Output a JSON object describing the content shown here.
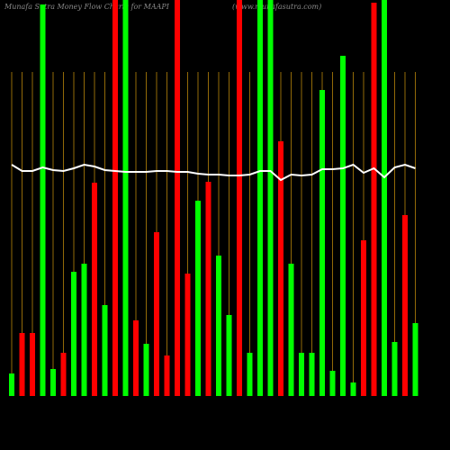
{
  "chart_data": {
    "type": "bar",
    "title": "Munafa Sutra Money Flow Charts for MAAPI",
    "subtitle": "(www.munafasutra.com)",
    "categories": [
      null,
      null,
      null,
      null,
      null,
      null,
      null,
      null,
      null,
      null,
      null,
      null,
      null,
      null,
      null,
      null,
      null,
      null,
      null,
      null,
      null,
      null,
      null,
      null,
      null,
      null,
      null,
      null,
      null,
      null,
      null,
      null,
      null,
      null,
      null,
      null,
      null,
      null,
      null,
      null
    ],
    "values": [
      25,
      70,
      70,
      435,
      30,
      48,
      138,
      147,
      237,
      101,
      440,
      440,
      84,
      58,
      182,
      45,
      440,
      136,
      217,
      238,
      156,
      90,
      440,
      48,
      440,
      440,
      283,
      147,
      48,
      48,
      340,
      28,
      378,
      15,
      173,
      437,
      440,
      60,
      201,
      81
    ],
    "colors": [
      "#00ff00",
      "#ff0000",
      "#ff0000",
      "#00ff00",
      "#00ff00",
      "#ff0000",
      "#00ff00",
      "#00ff00",
      "#ff0000",
      "#00ff00",
      "#ff0000",
      "#00ff00",
      "#ff0000",
      "#00ff00",
      "#ff0000",
      "#ff0000",
      "#ff0000",
      "#ff0000",
      "#00ff00",
      "#ff0000",
      "#00ff00",
      "#00ff00",
      "#ff0000",
      "#00ff00",
      "#00ff00",
      "#00ff00",
      "#ff0000",
      "#00ff00",
      "#00ff00",
      "#00ff00",
      "#00ff00",
      "#00ff00",
      "#00ff00",
      "#00ff00",
      "#ff0000",
      "#ff0000",
      "#00ff00",
      "#00ff00",
      "#ff0000",
      "#00ff00"
    ],
    "line": {
      "color": "#ffffff",
      "values": [
        257,
        250,
        250,
        254,
        251,
        250,
        253,
        257,
        255,
        251,
        250,
        249,
        249,
        249,
        250,
        250,
        249,
        249,
        247,
        246,
        246,
        245,
        245,
        246,
        250,
        250,
        240,
        246,
        245,
        246,
        252,
        252,
        253,
        257,
        248,
        253,
        243,
        254,
        257,
        253
      ]
    },
    "ylim": [
      0,
      440
    ],
    "grid": true,
    "grid_color": "#b8860b"
  }
}
